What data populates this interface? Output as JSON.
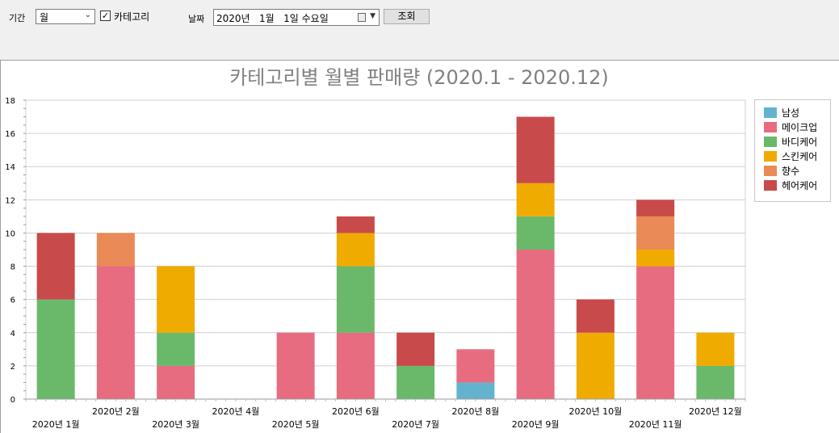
{
  "toolbar": {
    "period_label": "기간",
    "period_value": "월",
    "category_checkbox_label": "카테고리",
    "category_checked": true,
    "date_label": "날짜",
    "date_value": "2020년   1월   1일 수요일",
    "query_button": "조회"
  },
  "chart_data": {
    "type": "bar",
    "stacked": true,
    "title": "카테고리별 월별 판매량 (2020.1  -  2020.12)",
    "categories": [
      "2020년 1월",
      "2020년 2월",
      "2020년 3월",
      "2020년 4월",
      "2020년 5월",
      "2020년 6월",
      "2020년 7월",
      "2020년 8월",
      "2020년 9월",
      "2020년 10월",
      "2020년 11월",
      "2020년 12월"
    ],
    "series": [
      {
        "name": "남성",
        "color": "#63b3cf",
        "values": [
          0,
          0,
          0,
          0,
          0,
          0,
          0,
          1,
          0,
          0,
          0,
          0
        ]
      },
      {
        "name": "메이크업",
        "color": "#e86c80",
        "values": [
          0,
          8,
          2,
          0,
          4,
          4,
          0,
          2,
          9,
          0,
          8,
          0
        ]
      },
      {
        "name": "바디케어",
        "color": "#6ab96b",
        "values": [
          6,
          0,
          2,
          0,
          0,
          4,
          2,
          0,
          2,
          0,
          0,
          2
        ]
      },
      {
        "name": "스킨케어",
        "color": "#f0ab00",
        "values": [
          0,
          0,
          4,
          0,
          0,
          2,
          0,
          0,
          2,
          4,
          1,
          2
        ]
      },
      {
        "name": "향수",
        "color": "#ea8a56",
        "values": [
          0,
          2,
          0,
          0,
          0,
          0,
          0,
          0,
          0,
          0,
          2,
          0
        ]
      },
      {
        "name": "헤어케어",
        "color": "#c94a4a",
        "values": [
          4,
          0,
          0,
          0,
          0,
          1,
          2,
          0,
          4,
          2,
          1,
          0
        ]
      }
    ],
    "ylim": [
      0,
      18
    ],
    "yticks": [
      0,
      2,
      4,
      6,
      8,
      10,
      12,
      14,
      16,
      18
    ],
    "grid": true,
    "legend_position": "right"
  }
}
